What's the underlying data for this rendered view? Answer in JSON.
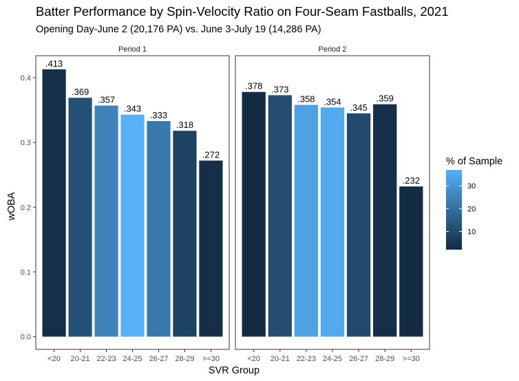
{
  "chart_data": {
    "type": "bar",
    "title": "Batter Performance by Spin-Velocity Ratio on Four-Seam Fastballs, 2021",
    "subtitle": "Opening Day-June 2 (20,176 PA) vs. June 3-July 19 (14,286 PA)",
    "xlabel": "SVR Group",
    "ylabel": "wOBA",
    "ylim": [
      0,
      0.43
    ],
    "yticks": [
      0.0,
      0.1,
      0.2,
      0.3,
      0.4
    ],
    "ytick_labels": [
      "0.0",
      "0.1",
      "0.2",
      "0.3",
      "0.4"
    ],
    "categories": [
      "<20",
      "20-21",
      "22-23",
      "24-25",
      "26-27",
      "28-29",
      ">=30"
    ],
    "grid": false,
    "legend": {
      "title": "% of Sample",
      "position": "right",
      "ticks": [
        10,
        20,
        30
      ],
      "tick_labels": [
        "10",
        "20",
        "30"
      ],
      "range": [
        2,
        37
      ],
      "color_low": "#132B43",
      "color_high": "#56B1F7"
    },
    "panels": [
      {
        "name": "Period 1",
        "values": [
          0.413,
          0.369,
          0.357,
          0.343,
          0.333,
          0.318,
          0.272
        ],
        "labels": [
          ".413",
          ".369",
          ".357",
          ".343",
          ".333",
          ".318",
          ".272"
        ],
        "pct_sample": [
          3,
          12,
          25,
          37,
          22,
          8,
          3
        ]
      },
      {
        "name": "Period 2",
        "values": [
          0.378,
          0.373,
          0.358,
          0.354,
          0.345,
          0.359,
          0.232
        ],
        "labels": [
          ".378",
          ".373",
          ".358",
          ".354",
          ".345",
          ".359",
          ".232"
        ],
        "pct_sample": [
          2,
          11,
          33,
          35,
          10,
          3,
          2
        ]
      }
    ]
  }
}
